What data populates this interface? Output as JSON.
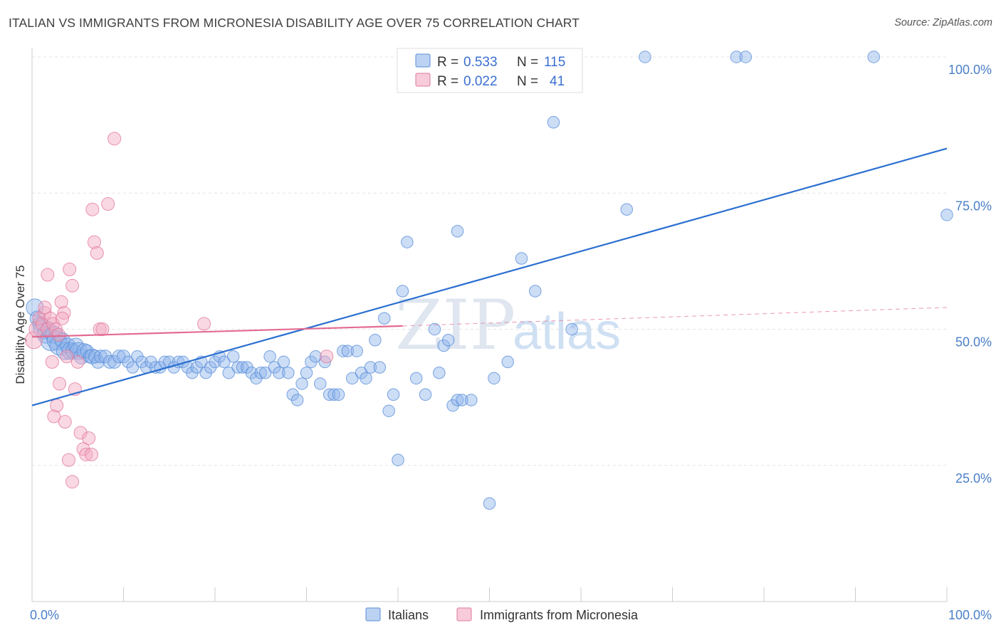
{
  "title": "ITALIAN VS IMMIGRANTS FROM MICRONESIA DISABILITY AGE OVER 75 CORRELATION CHART",
  "source": "Source: ZipAtlas.com",
  "watermark": {
    "part1": "ZIP",
    "part2": "atlas"
  },
  "legend": {
    "rows": [
      {
        "r_label": "R =",
        "r_value": "0.533",
        "n_label": "N =",
        "n_value": "115",
        "color": "#8fb4ea"
      },
      {
        "r_label": "R =",
        "r_value": "0.022",
        "n_label": "N =",
        "n_value": "41",
        "color": "#f2a8c0"
      }
    ]
  },
  "bottom_legend": [
    {
      "label": "Italians",
      "color": "#8fb4ea"
    },
    {
      "label": "Immigrants from Micronesia",
      "color": "#f2a8c0"
    }
  ],
  "chart_data": {
    "type": "scatter",
    "title": "ITALIAN VS IMMIGRANTS FROM MICRONESIA DISABILITY AGE OVER 75 CORRELATION CHART",
    "xlabel": "",
    "ylabel": "Disability Age Over 75",
    "xlim": [
      0,
      100
    ],
    "ylim": [
      0,
      102
    ],
    "x_tick_labels": [
      "0.0%",
      "100.0%"
    ],
    "y_ticks": [
      25,
      50,
      75,
      100
    ],
    "y_tick_labels": [
      "25.0%",
      "50.0%",
      "75.0%",
      "100.0%"
    ],
    "grid": true,
    "legend_placement": "top-center",
    "series": [
      {
        "name": "Italians",
        "color": "#8fb4ea",
        "stroke": "#5a8fd8",
        "trend": {
          "x": [
            0,
            100
          ],
          "y": [
            36,
            83.2
          ],
          "color": "#2a6fd0",
          "style": "solid"
        },
        "points": [
          [
            0.3,
            54,
            16
          ],
          [
            0.6,
            52,
            14
          ],
          [
            0.9,
            51,
            14
          ],
          [
            1.2,
            50,
            18
          ],
          [
            1.5,
            49,
            16
          ],
          [
            1.8,
            50,
            14
          ],
          [
            2.1,
            48,
            20
          ],
          [
            2.4,
            49,
            16
          ],
          [
            2.7,
            48,
            18
          ],
          [
            3.0,
            47,
            18
          ],
          [
            3.3,
            48,
            14
          ],
          [
            3.6,
            46,
            16
          ],
          [
            3.9,
            47,
            14
          ],
          [
            4.2,
            46,
            16
          ],
          [
            4.5,
            46,
            14
          ],
          [
            4.8,
            47,
            14
          ],
          [
            5.1,
            46,
            16
          ],
          [
            5.4,
            45,
            14
          ],
          [
            5.7,
            46,
            14
          ],
          [
            6.0,
            46,
            12
          ],
          [
            6.3,
            45,
            12
          ],
          [
            6.6,
            45,
            14
          ],
          [
            6.9,
            45,
            12
          ],
          [
            7.2,
            44,
            12
          ],
          [
            7.5,
            45,
            12
          ],
          [
            8.0,
            45,
            12
          ],
          [
            8.5,
            44,
            12
          ],
          [
            9.0,
            44,
            12
          ],
          [
            9.5,
            45,
            12
          ],
          [
            10.0,
            45,
            12
          ],
          [
            10.5,
            44,
            11
          ],
          [
            11.0,
            43,
            11
          ],
          [
            11.5,
            45,
            11
          ],
          [
            12.0,
            44,
            11
          ],
          [
            12.5,
            43,
            11
          ],
          [
            13.0,
            44,
            11
          ],
          [
            13.5,
            43,
            11
          ],
          [
            14.0,
            43,
            11
          ],
          [
            14.5,
            44,
            11
          ],
          [
            15.0,
            44,
            11
          ],
          [
            15.5,
            43,
            11
          ],
          [
            16.0,
            44,
            11
          ],
          [
            16.5,
            44,
            11
          ],
          [
            17.0,
            43,
            11
          ],
          [
            17.5,
            42,
            11
          ],
          [
            18.0,
            43,
            11
          ],
          [
            18.5,
            44,
            11
          ],
          [
            19.0,
            42,
            11
          ],
          [
            19.5,
            43,
            11
          ],
          [
            20.0,
            44,
            11
          ],
          [
            20.5,
            45,
            11
          ],
          [
            21.0,
            44,
            11
          ],
          [
            21.5,
            42,
            11
          ],
          [
            22.0,
            45,
            11
          ],
          [
            22.5,
            43,
            11
          ],
          [
            23.0,
            43,
            11
          ],
          [
            23.5,
            43,
            11
          ],
          [
            24.0,
            42,
            11
          ],
          [
            24.5,
            41,
            11
          ],
          [
            25.0,
            42,
            11
          ],
          [
            25.5,
            42,
            11
          ],
          [
            26.0,
            45,
            11
          ],
          [
            26.5,
            43,
            11
          ],
          [
            27.0,
            42,
            11
          ],
          [
            27.5,
            44,
            11
          ],
          [
            28.0,
            42,
            11
          ],
          [
            28.5,
            38,
            11
          ],
          [
            29.0,
            37,
            11
          ],
          [
            29.5,
            40,
            11
          ],
          [
            30.0,
            42,
            11
          ],
          [
            30.5,
            44,
            11
          ],
          [
            31.0,
            45,
            11
          ],
          [
            31.5,
            40,
            11
          ],
          [
            32.0,
            44,
            11
          ],
          [
            32.5,
            38,
            11
          ],
          [
            33.0,
            38,
            11
          ],
          [
            33.5,
            38,
            11
          ],
          [
            34.0,
            46,
            11
          ],
          [
            34.5,
            46,
            11
          ],
          [
            35.0,
            41,
            11
          ],
          [
            35.5,
            46,
            11
          ],
          [
            36.0,
            42,
            11
          ],
          [
            36.5,
            41,
            11
          ],
          [
            37.0,
            43,
            11
          ],
          [
            37.5,
            48,
            11
          ],
          [
            38.0,
            43,
            11
          ],
          [
            38.5,
            52,
            11
          ],
          [
            39.0,
            35,
            11
          ],
          [
            39.5,
            38,
            11
          ],
          [
            40.0,
            26,
            11
          ],
          [
            40.5,
            57,
            11
          ],
          [
            41.0,
            66,
            11
          ],
          [
            42.0,
            41,
            11
          ],
          [
            43.0,
            38,
            11
          ],
          [
            44.0,
            50,
            11
          ],
          [
            44.5,
            42,
            11
          ],
          [
            45.0,
            47,
            11
          ],
          [
            45.5,
            48,
            11
          ],
          [
            46.0,
            36,
            11
          ],
          [
            46.5,
            37,
            11
          ],
          [
            47.0,
            37,
            11
          ],
          [
            48.0,
            37,
            11
          ],
          [
            50.0,
            18,
            11
          ],
          [
            50.5,
            41,
            11
          ],
          [
            52.0,
            44,
            11
          ],
          [
            53.5,
            63,
            11
          ],
          [
            55.0,
            57,
            11
          ],
          [
            57.0,
            88,
            11
          ],
          [
            59.0,
            50,
            11
          ],
          [
            65.0,
            72,
            11
          ],
          [
            67.0,
            100,
            11
          ],
          [
            77.0,
            100,
            11
          ],
          [
            78.0,
            100,
            11
          ],
          [
            92.0,
            100,
            11
          ],
          [
            100.0,
            71,
            11
          ],
          [
            46.5,
            68,
            11
          ],
          [
            46.2,
            100,
            11
          ],
          [
            51.0,
            100,
            11
          ],
          [
            57.5,
            100,
            11
          ]
        ]
      },
      {
        "name": "Immigrants from Micronesia",
        "color": "#f2a8c0",
        "stroke": "#e27a9c",
        "trend": {
          "x": [
            0,
            40.5
          ],
          "y": [
            48.6,
            50.6
          ],
          "color": "#e36b92",
          "style": "solid",
          "ext": {
            "x": [
              40.5,
              100
            ],
            "y": [
              50.6,
              54
            ],
            "style": "dashed"
          }
        },
        "points": [
          [
            0.2,
            48,
            16
          ],
          [
            0.5,
            50,
            14
          ],
          [
            0.8,
            52,
            12
          ],
          [
            1.1,
            51,
            12
          ],
          [
            1.4,
            53,
            12
          ],
          [
            1.7,
            50,
            12
          ],
          [
            2.0,
            52,
            12
          ],
          [
            2.3,
            51,
            12
          ],
          [
            2.6,
            50,
            12
          ],
          [
            2.9,
            49,
            12
          ],
          [
            3.2,
            55,
            12
          ],
          [
            3.5,
            53,
            12
          ],
          [
            3.8,
            45,
            12
          ],
          [
            4.1,
            61,
            12
          ],
          [
            4.4,
            58,
            12
          ],
          [
            4.7,
            39,
            12
          ],
          [
            5.0,
            44,
            12
          ],
          [
            5.3,
            31,
            12
          ],
          [
            5.6,
            28,
            12
          ],
          [
            5.9,
            27,
            12
          ],
          [
            6.2,
            30,
            12
          ],
          [
            6.5,
            27,
            12
          ],
          [
            6.8,
            66,
            12
          ],
          [
            7.1,
            64,
            12
          ],
          [
            7.4,
            50,
            12
          ],
          [
            7.7,
            50,
            12
          ],
          [
            8.3,
            73,
            12
          ],
          [
            9.0,
            85,
            12
          ],
          [
            2.4,
            34,
            12
          ],
          [
            2.7,
            36,
            12
          ],
          [
            3.0,
            40,
            12
          ],
          [
            3.6,
            33,
            12
          ],
          [
            4.0,
            26,
            12
          ],
          [
            4.4,
            22,
            12
          ],
          [
            1.7,
            60,
            12
          ],
          [
            2.2,
            44,
            12
          ],
          [
            6.6,
            72,
            12
          ],
          [
            18.8,
            51,
            12
          ],
          [
            32.2,
            45,
            12
          ],
          [
            1.4,
            54,
            12
          ],
          [
            3.3,
            52,
            12
          ]
        ]
      }
    ]
  }
}
